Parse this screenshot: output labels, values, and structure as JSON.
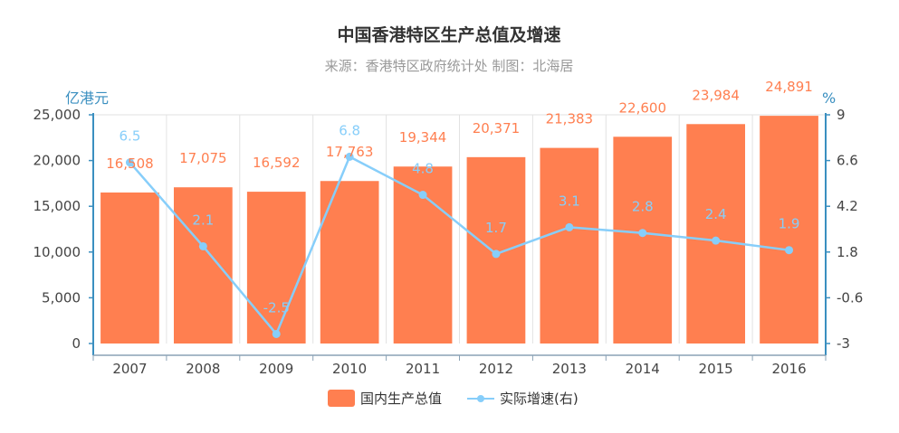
{
  "chart_data": {
    "type": "bar",
    "title": "中国香港特区生产总值及增速",
    "subtitle": "来源：香港特区政府统计处 制图：北海居",
    "categories": [
      "2007",
      "2008",
      "2009",
      "2010",
      "2011",
      "2012",
      "2013",
      "2014",
      "2015",
      "2016"
    ],
    "series": [
      {
        "name": "国内生产总值",
        "type": "bar",
        "axis": "left",
        "values": [
          16508,
          17075,
          16592,
          17763,
          19344,
          20371,
          21383,
          22600,
          23984,
          24891
        ],
        "labels": [
          "16,508",
          "17,075",
          "16,592",
          "17,763",
          "19,344",
          "20,371",
          "21,383",
          "22,600",
          "23,984",
          "24,891"
        ]
      },
      {
        "name": "实际增速(右)",
        "type": "line",
        "axis": "right",
        "values": [
          6.5,
          2.1,
          -2.5,
          6.8,
          4.8,
          1.7,
          3.1,
          2.8,
          2.4,
          1.9
        ],
        "labels": [
          "6.5",
          "2.1",
          "-2.5",
          "6.8",
          "4.8",
          "1.7",
          "3.1",
          "2.8",
          "2.4",
          "1.9"
        ]
      }
    ],
    "y_left": {
      "label": "亿港元",
      "ylim": [
        0,
        25000
      ],
      "ticks": [
        0,
        5000,
        10000,
        15000,
        20000,
        25000
      ],
      "tick_labels": [
        "0",
        "5,000",
        "10,000",
        "15,000",
        "20,000",
        "25,000"
      ]
    },
    "y_right": {
      "label": "%",
      "ylim": [
        -3,
        9
      ],
      "ticks": [
        -3,
        -0.6,
        1.8,
        4.2,
        6.6,
        9
      ],
      "tick_labels": [
        "-3",
        "-0.6",
        "1.8",
        "4.2",
        "6.6",
        "9"
      ]
    },
    "grid": "vertical",
    "legend_position": "bottom",
    "colors": {
      "bar": "#ff7f50",
      "bar_label": "#ff7f50",
      "line": "#87cefa",
      "line_label": "#87cefa",
      "axis": "#3a8fc0"
    }
  }
}
